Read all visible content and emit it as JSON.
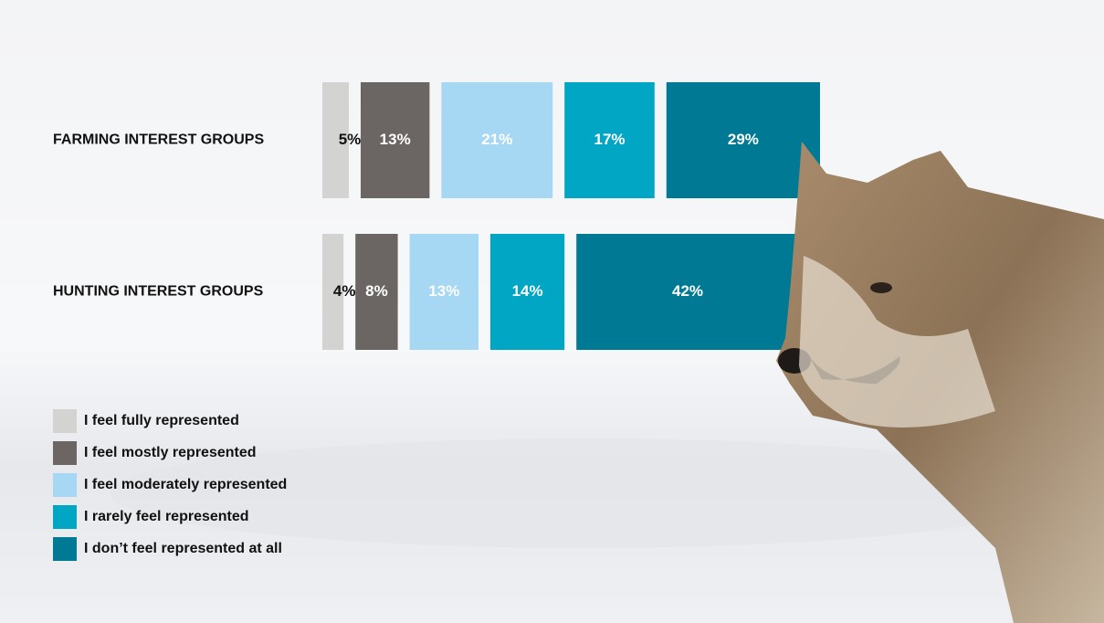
{
  "chart_data": {
    "type": "bar",
    "categories": [
      "FARMING INTEREST GROUPS",
      "HUNTING INTEREST GROUPS"
    ],
    "series": [
      {
        "name": "I feel fully represented",
        "color": "#d3d3d1",
        "values": [
          5,
          4
        ],
        "value_labels": [
          "5%",
          "4%"
        ]
      },
      {
        "name": "I feel mostly represented",
        "color": "#6b6663",
        "values": [
          13,
          8
        ],
        "value_labels": [
          "13%",
          "8%"
        ]
      },
      {
        "name": "I feel moderately represented",
        "color": "#a6d8f3",
        "values": [
          21,
          13
        ],
        "value_labels": [
          "21%",
          "13%"
        ]
      },
      {
        "name": "I rarely feel represented",
        "color": "#00a6c4",
        "values": [
          17,
          14
        ],
        "value_labels": [
          "17%",
          "14%"
        ]
      },
      {
        "name": "I don’t feel represented at all",
        "color": "#007a94",
        "values": [
          29,
          42
        ],
        "value_labels": [
          "29%",
          "42%"
        ]
      }
    ]
  }
}
